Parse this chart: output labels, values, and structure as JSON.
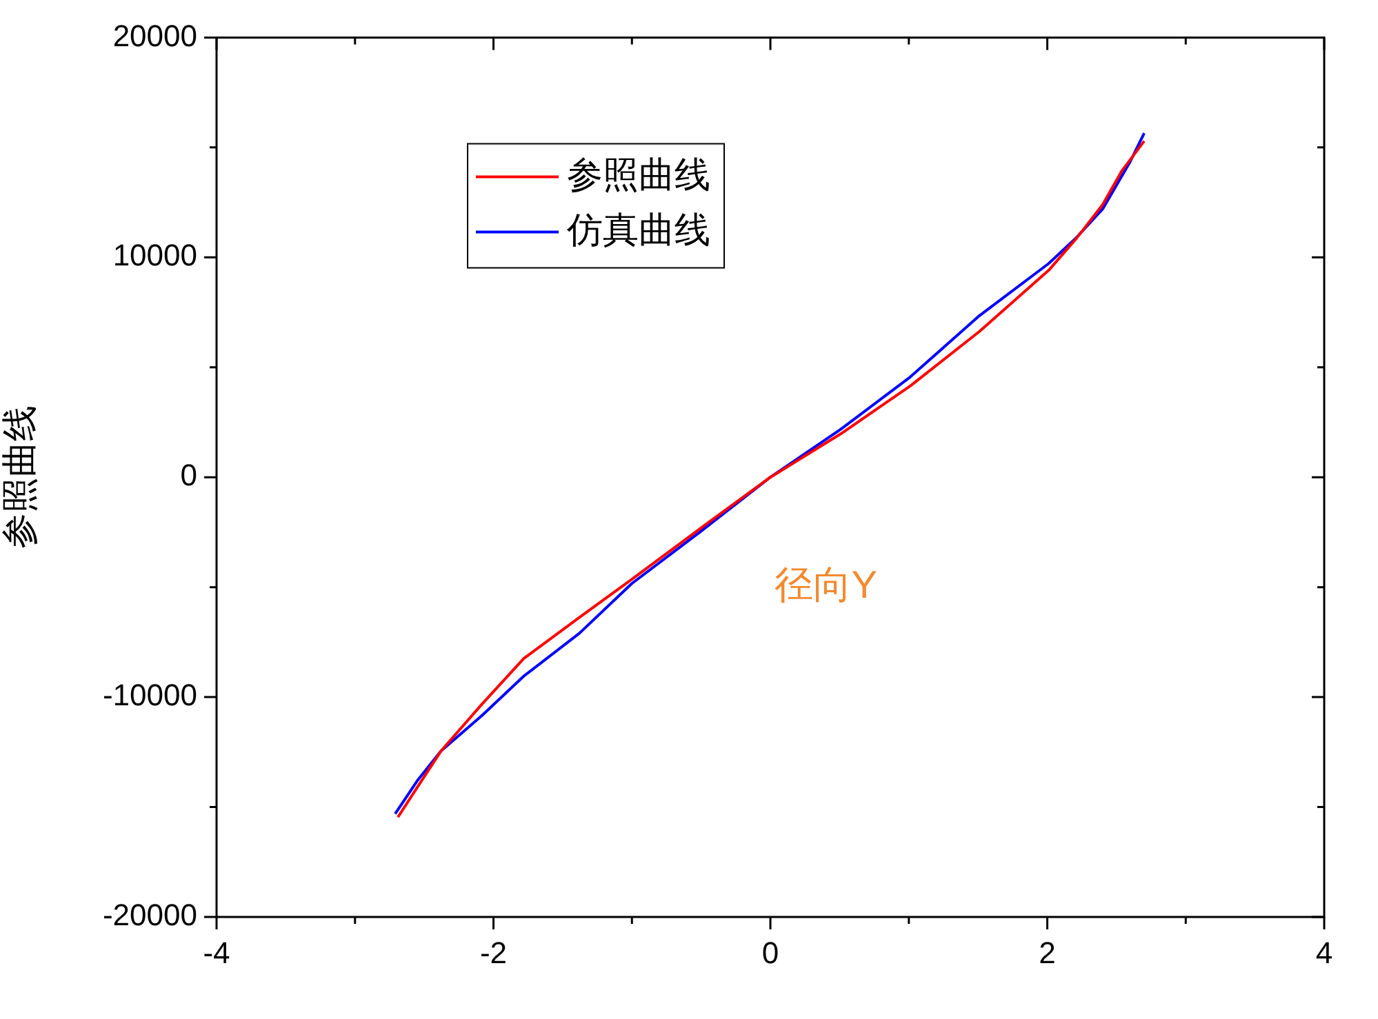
{
  "chart_data": {
    "type": "line",
    "ylabel": "参照曲线",
    "annotations": [
      "径向Y"
    ],
    "xlim": [
      -4,
      4
    ],
    "xticks": [
      -4,
      -2,
      0,
      2,
      4
    ],
    "ylim": [
      -20000,
      20000
    ],
    "yticks": [
      -20000,
      -10000,
      0,
      10000,
      20000
    ],
    "grid": false,
    "legend": "top left",
    "marker": "none",
    "line_style": "solid",
    "series": [
      {
        "name": "参照曲线",
        "color": "#ff0000",
        "x": [
          -2.69,
          -2.55,
          -2.38,
          -2.08,
          -1.78,
          -1.38,
          -1.0,
          -0.5,
          0,
          0.51,
          1.01,
          1.51,
          2.01,
          2.21,
          2.4,
          2.54,
          2.7
        ],
        "values": [
          -15460,
          -14100,
          -12460,
          -10300,
          -8240,
          -6380,
          -4640,
          -2300,
          0,
          1980,
          4150,
          6630,
          9410,
          10860,
          12400,
          13950,
          15290
        ]
      },
      {
        "name": "仿真曲线",
        "color": "#0000ff",
        "x": [
          -2.71,
          -2.55,
          -2.38,
          -2.08,
          -1.78,
          -1.38,
          -1.0,
          -0.5,
          0,
          0.51,
          1.01,
          1.51,
          2.01,
          2.21,
          2.4,
          2.6,
          2.7
        ],
        "values": [
          -15310,
          -13800,
          -12460,
          -10820,
          -9040,
          -7100,
          -4830,
          -2450,
          0,
          2190,
          4560,
          7350,
          9720,
          10900,
          12200,
          14370,
          15650
        ]
      }
    ]
  }
}
